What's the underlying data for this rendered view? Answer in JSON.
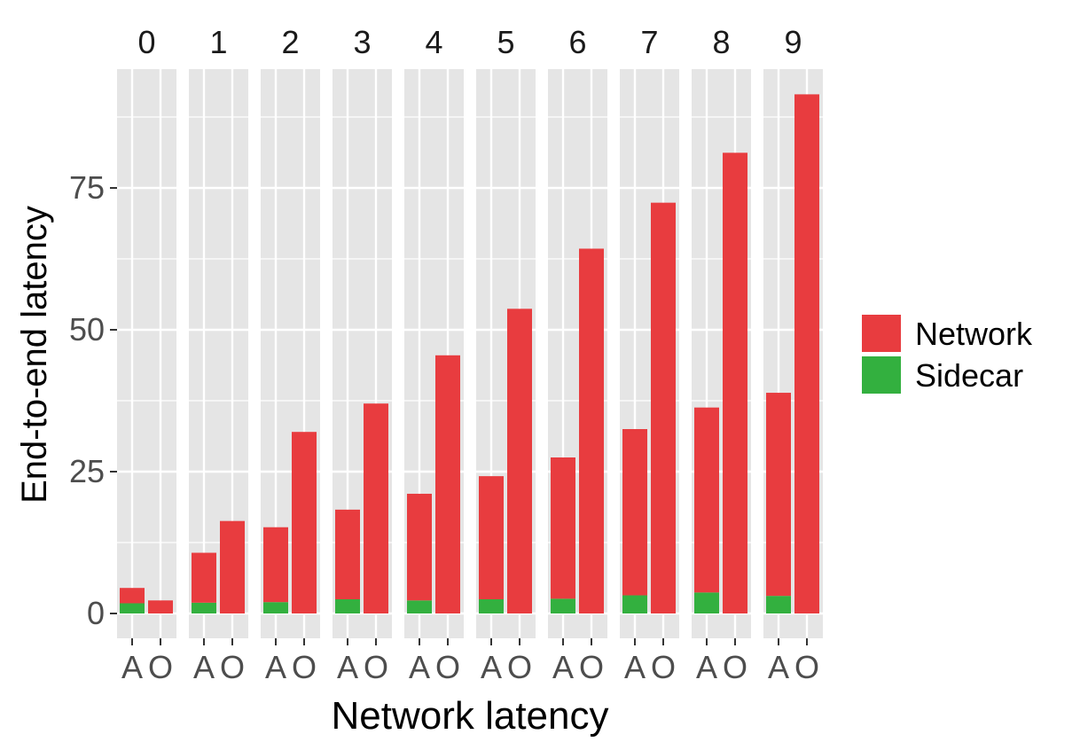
{
  "chart_data": {
    "type": "bar",
    "stacked": true,
    "faceted": true,
    "xlabel": "Network latency",
    "ylabel": "End-to-end latency",
    "ylim": [
      0,
      95
    ],
    "yticks": [
      0,
      25,
      50,
      75
    ],
    "facets": [
      "0",
      "1",
      "2",
      "3",
      "4",
      "5",
      "6",
      "7",
      "8",
      "9"
    ],
    "categories": [
      "A",
      "O"
    ],
    "legend": {
      "placement": "right",
      "entries": [
        "Network",
        "Sidecar"
      ]
    },
    "colors": {
      "Network": "#E83C3F",
      "Sidecar": "#33B03F",
      "panel": "#E5E5E5",
      "grid": "#FFFFFF"
    },
    "series": [
      {
        "name": "Sidecar",
        "values": [
          [
            1.8,
            0
          ],
          [
            1.9,
            0
          ],
          [
            2.0,
            0
          ],
          [
            2.5,
            0
          ],
          [
            2.3,
            0
          ],
          [
            2.5,
            0
          ],
          [
            2.6,
            0
          ],
          [
            3.2,
            0
          ],
          [
            3.7,
            0
          ],
          [
            3.1,
            0
          ]
        ]
      },
      {
        "name": "Network",
        "values": [
          [
            2.7,
            2.3
          ],
          [
            8.8,
            16.3
          ],
          [
            13.2,
            32.0
          ],
          [
            15.8,
            37.0
          ],
          [
            18.8,
            45.5
          ],
          [
            21.7,
            53.7
          ],
          [
            24.9,
            64.3
          ],
          [
            29.3,
            72.4
          ],
          [
            32.6,
            81.2
          ],
          [
            35.8,
            91.5
          ]
        ]
      }
    ]
  }
}
